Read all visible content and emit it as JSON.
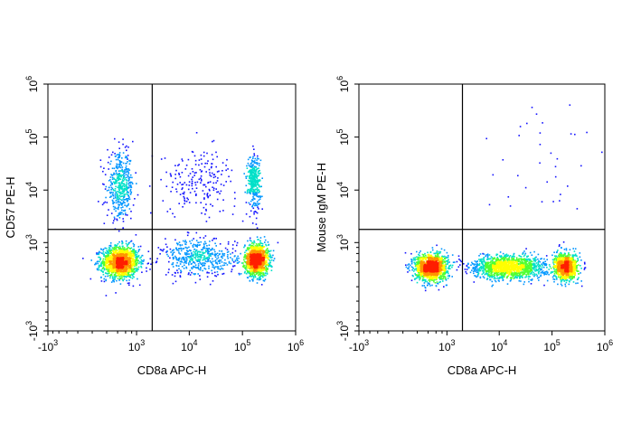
{
  "chart_data": [
    {
      "type": "scatter",
      "subtype": "flow-cytometry-density-dot-plot",
      "xlabel": "CD8a APC-H",
      "ylabel": "CD57 PE-H",
      "x_ticks": [
        "-10",
        "10",
        "10",
        "10",
        "10"
      ],
      "x_tick_exponents": [
        "3",
        "3",
        "4",
        "5",
        "6"
      ],
      "y_ticks": [
        "-10",
        "10",
        "10",
        "10",
        "10"
      ],
      "y_tick_exponents": [
        "3",
        "3",
        "4",
        "5",
        "6"
      ],
      "x_scale": "biexponential",
      "y_scale": "biexponential",
      "xlim": [
        -1000,
        1000000
      ],
      "ylim": [
        -1000,
        1000000
      ],
      "gate": {
        "x": 2000,
        "y": 1800
      },
      "populations": [
        {
          "x": 450,
          "y": 400,
          "spread_x": 0.35,
          "spread_y": 0.3,
          "events": 1500,
          "density": "high"
        },
        {
          "x": 180000,
          "y": 450,
          "spread_x": 0.22,
          "spread_y": 0.3,
          "events": 1300,
          "density": "high"
        },
        {
          "x": 450,
          "y": 12000,
          "spread_x": 0.25,
          "spread_y": 0.6,
          "events": 450,
          "density": "low"
        },
        {
          "x": 160000,
          "y": 15000,
          "spread_x": 0.12,
          "spread_y": 0.5,
          "events": 350,
          "density": "medium"
        },
        {
          "x": 15000,
          "y": 500,
          "spread_x": 0.7,
          "spread_y": 0.35,
          "events": 500,
          "density": "low"
        },
        {
          "x": 15000,
          "y": 15000,
          "spread_x": 0.7,
          "spread_y": 0.6,
          "events": 200,
          "density": "low"
        }
      ]
    },
    {
      "type": "scatter",
      "subtype": "flow-cytometry-density-dot-plot",
      "xlabel": "CD8a APC-H",
      "ylabel": "Mouse IgM PE-H",
      "x_ticks": [
        "-10",
        "10",
        "10",
        "10",
        "10"
      ],
      "x_tick_exponents": [
        "3",
        "3",
        "4",
        "5",
        "6"
      ],
      "y_ticks": [
        "-10",
        "10",
        "10",
        "10",
        "10"
      ],
      "y_tick_exponents": [
        "3",
        "3",
        "4",
        "5",
        "6"
      ],
      "x_scale": "biexponential",
      "y_scale": "biexponential",
      "xlim": [
        -1000,
        1000000
      ],
      "ylim": [
        -1000,
        1000000
      ],
      "gate": {
        "x": 2000,
        "y": 1800
      },
      "populations": [
        {
          "x": 450,
          "y": 300,
          "spread_x": 0.3,
          "spread_y": 0.25,
          "events": 1400,
          "density": "high"
        },
        {
          "x": 180000,
          "y": 300,
          "spread_x": 0.22,
          "spread_y": 0.25,
          "events": 1000,
          "density": "high"
        },
        {
          "x": 15000,
          "y": 300,
          "spread_x": 0.7,
          "spread_y": 0.22,
          "events": 1400,
          "density": "medium"
        },
        {
          "x": 60000,
          "y": 30000,
          "spread_x": 1.2,
          "spread_y": 1.2,
          "events": 35,
          "density": "low"
        }
      ]
    }
  ],
  "colors": {
    "density_scale": [
      "#1414ff",
      "#0096ff",
      "#00e0c8",
      "#50ff30",
      "#ffff00",
      "#ff9600",
      "#ff1e00"
    ],
    "axis": "#000000",
    "gate_line": "#000000"
  }
}
